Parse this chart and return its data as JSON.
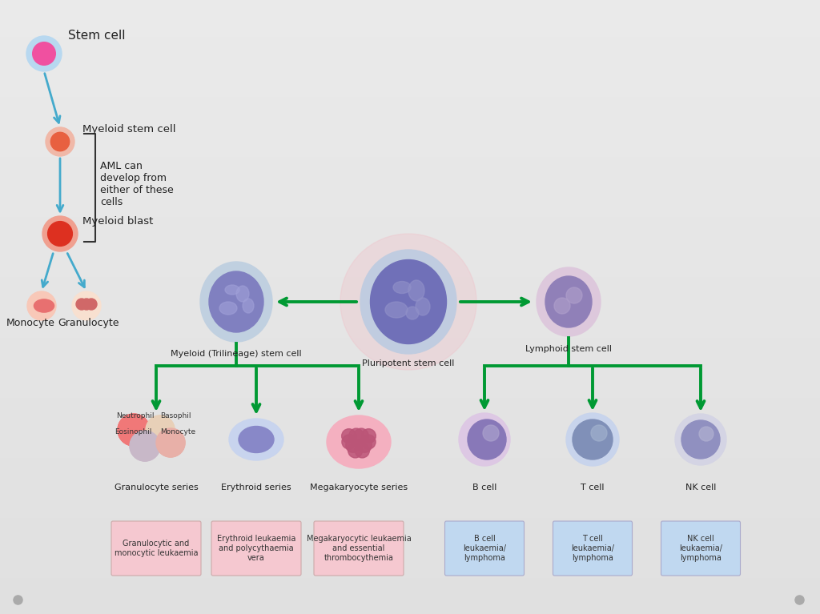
{
  "bg_color": "#e6e6e6",
  "stem_cell_label": "Stem cell",
  "myeloid_stem_cell_label": "Myeloid stem cell",
  "myeloid_blast_label": "Myeloid blast",
  "monocyte_label": "Monocyte",
  "granulocyte_label": "Granulocyte",
  "aml_text": "AML can\ndevelop from\neither of these\ncells",
  "myeloid_trilineage_label": "Myeloid (Trilineage) stem cell",
  "pluripotent_label": "Pluripotent stem cell",
  "lymphoid_label": "Lymphoid stem cell",
  "series_labels": [
    "Granulocyte series",
    "Erythroid series",
    "Megakaryocyte series",
    "B cell",
    "T cell",
    "NK cell"
  ],
  "box_labels_left": [
    "Granulocytic and\nmonocytic leukaemia",
    "Erythroid leukaemia\nand polycythaemia\nvera",
    "Megakaryocytic leukaemia\nand essential\nthrombocythemia"
  ],
  "box_labels_right": [
    "B cell\nleukaemia/\nlymphoma",
    "T cell\nleukaemia/\nlymphoma",
    "NK cell\nleukaemia/\nlymphoma"
  ],
  "arrow_color": "#009933",
  "cyan_arrow": "#44aacc",
  "box_color_left": "#f5c8d0",
  "box_color_right": "#c0d8f0",
  "text_color": "#222222"
}
